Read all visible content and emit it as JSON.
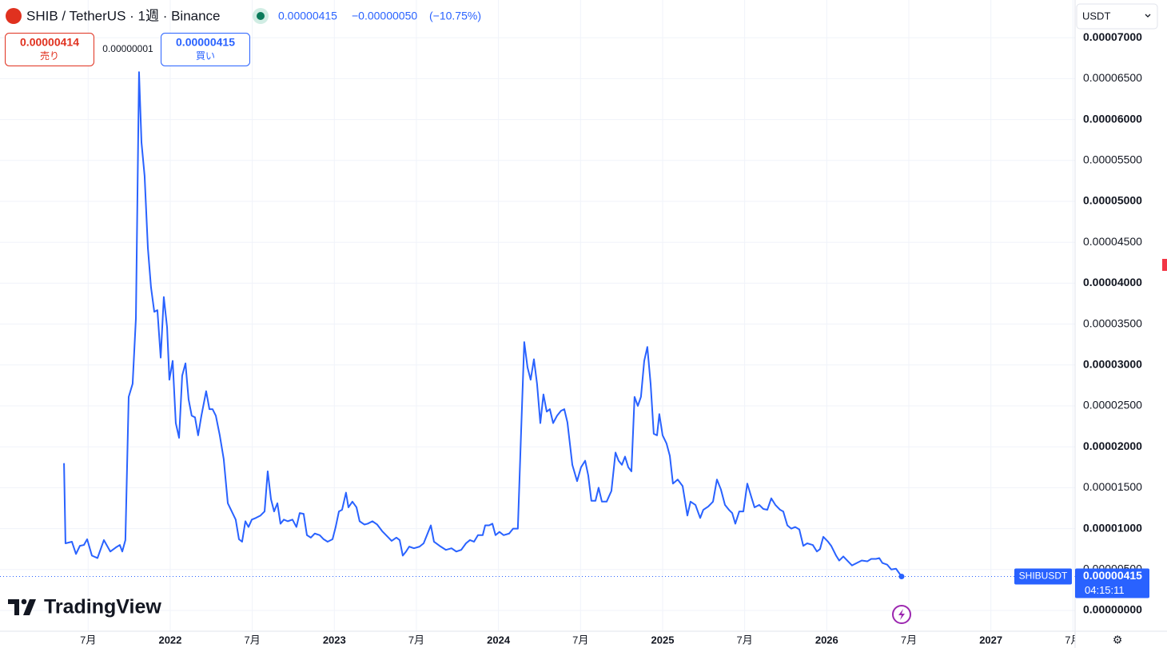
{
  "header": {
    "symbol": "SHIB / TetherUS · 1週 · Binance",
    "price": "0.00000415",
    "change": "−0.00000050",
    "change_pct": "(−10.75%)",
    "sell_price": "0.00000414",
    "sell_label": "売り",
    "spread": "0.00000001",
    "buy_price": "0.00000415",
    "buy_label": "買い",
    "currency": "USDT",
    "countdown": "04:15:11",
    "logo": "TradingView"
  },
  "chart_data": {
    "type": "line",
    "x": [
      2021.353,
      2021.362,
      2021.401,
      2021.426,
      2021.45,
      2021.474,
      2021.494,
      2021.523,
      2021.557,
      2021.596,
      2021.635,
      2021.669,
      2021.693,
      2021.708,
      2021.727,
      2021.747,
      2021.771,
      2021.791,
      2021.81,
      2021.825,
      2021.844,
      2021.864,
      2021.883,
      2021.903,
      2021.922,
      2021.942,
      2021.961,
      2021.981,
      2021.995,
      2022.015,
      2022.034,
      2022.054,
      2022.073,
      2022.093,
      2022.112,
      2022.131,
      2022.151,
      2022.17,
      2022.19,
      2022.219,
      2022.239,
      2022.258,
      2022.278,
      2022.302,
      2022.326,
      2022.351,
      2022.375,
      2022.399,
      2022.419,
      2022.438,
      2022.458,
      2022.477,
      2022.497,
      2022.521,
      2022.55,
      2022.575,
      2022.594,
      2022.614,
      2022.633,
      2022.653,
      2022.672,
      2022.692,
      2022.716,
      2022.745,
      2022.769,
      2022.789,
      2022.813,
      2022.833,
      2022.857,
      2022.881,
      2022.911,
      2022.935,
      2022.959,
      2022.989,
      2023.008,
      2023.028,
      2023.047,
      2023.071,
      2023.086,
      2023.11,
      2023.135,
      2023.154,
      2023.183,
      2023.203,
      2023.232,
      2023.261,
      2023.291,
      2023.325,
      2023.349,
      2023.378,
      2023.398,
      2023.417,
      2023.437,
      2023.456,
      2023.485,
      2023.519,
      2023.544,
      2023.568,
      2023.588,
      2023.607,
      2023.641,
      2023.68,
      2023.714,
      2023.743,
      2023.773,
      2023.802,
      2023.826,
      2023.851,
      2023.875,
      2023.904,
      2023.919,
      2023.943,
      2023.963,
      2023.982,
      2024.006,
      2024.031,
      2024.065,
      2024.089,
      2024.118,
      2024.138,
      2024.157,
      2024.177,
      2024.196,
      2024.216,
      2024.235,
      2024.255,
      2024.274,
      2024.294,
      2024.313,
      2024.333,
      2024.357,
      2024.381,
      2024.401,
      2024.42,
      2024.45,
      2024.479,
      2024.503,
      2024.528,
      2024.547,
      2024.566,
      2024.591,
      2024.61,
      2024.63,
      2024.659,
      2024.688,
      2024.713,
      2024.732,
      2024.752,
      2024.771,
      2024.791,
      2024.81,
      2024.829,
      2024.849,
      2024.868,
      2024.888,
      2024.907,
      2024.927,
      2024.946,
      2024.966,
      2024.98,
      2025.0,
      2025.024,
      2025.044,
      2025.063,
      2025.092,
      2025.122,
      2025.151,
      2025.17,
      2025.2,
      2025.229,
      2025.248,
      2025.278,
      2025.307,
      2025.331,
      2025.355,
      2025.38,
      2025.404,
      2025.424,
      2025.443,
      2025.467,
      2025.492,
      2025.516,
      2025.54,
      2025.56,
      2025.589,
      2025.614,
      2025.638,
      2025.662,
      2025.687,
      2025.716,
      2025.735,
      2025.76,
      2025.784,
      2025.808,
      2025.833,
      2025.857,
      2025.881,
      2025.915,
      2025.94,
      2025.959,
      2025.979,
      2026.008,
      2026.027,
      2026.057,
      2026.076,
      2026.101,
      2026.125,
      2026.154,
      2026.183,
      2026.213,
      2026.247,
      2026.271,
      2026.3,
      2026.32,
      2026.339,
      2026.368,
      2026.393,
      2026.422,
      2026.456
    ],
    "series": [
      {
        "name": "SHIBUSDT",
        "color": "#2962ff",
        "values": [
          1.8e-05,
          8.2e-06,
          8.4e-06,
          6.9e-06,
          7.9e-06,
          8e-06,
          8.7e-06,
          6.7e-06,
          6.4e-06,
          8.6e-06,
          7.2e-06,
          7.7e-06,
          8e-06,
          7.2e-06,
          8.6e-06,
          2.61e-05,
          2.77e-05,
          3.57e-05,
          6.58e-05,
          5.72e-05,
          5.31e-05,
          4.43e-05,
          3.95e-05,
          3.65e-05,
          3.67e-05,
          3.09e-05,
          3.83e-05,
          3.46e-05,
          2.82e-05,
          3.05e-05,
          2.29e-05,
          2.11e-05,
          2.87e-05,
          3.02e-05,
          2.58e-05,
          2.38e-05,
          2.36e-05,
          2.14e-05,
          2.38e-05,
          2.68e-05,
          2.46e-05,
          2.46e-05,
          2.38e-05,
          2.14e-05,
          1.85e-05,
          1.31e-05,
          1.21e-05,
          1.11e-05,
          8.7e-06,
          8.4e-06,
          1.09e-05,
          1.02e-05,
          1.11e-05,
          1.13e-05,
          1.16e-05,
          1.21e-05,
          1.7e-05,
          1.36e-05,
          1.21e-05,
          1.31e-05,
          1.06e-05,
          1.11e-05,
          1.09e-05,
          1.11e-05,
          1.02e-05,
          1.19e-05,
          1.18e-05,
          9.2e-06,
          8.9e-06,
          9.4e-06,
          9.2e-06,
          8.7e-06,
          8.4e-06,
          8.7e-06,
          1.02e-05,
          1.21e-05,
          1.23e-05,
          1.44e-05,
          1.26e-05,
          1.33e-05,
          1.26e-05,
          1.09e-05,
          1.05e-05,
          1.06e-05,
          1.09e-05,
          1.05e-05,
          9.7e-06,
          9e-06,
          8.5e-06,
          8.9e-06,
          8.6e-06,
          6.7e-06,
          7.2e-06,
          7.8e-06,
          7.6e-06,
          7.8e-06,
          8.2e-06,
          9.4e-06,
          1.04e-05,
          8.4e-06,
          7.9e-06,
          7.4e-06,
          7.6e-06,
          7.2e-06,
          7.4e-06,
          8.2e-06,
          8.6e-06,
          8.4e-06,
          9.2e-06,
          9.2e-06,
          1.04e-05,
          1.04e-05,
          1.06e-05,
          9.2e-06,
          9.6e-06,
          9.2e-06,
          9.4e-06,
          1e-05,
          1e-05,
          2.19e-05,
          3.28e-05,
          2.97e-05,
          2.82e-05,
          3.07e-05,
          2.77e-05,
          2.29e-05,
          2.64e-05,
          2.43e-05,
          2.46e-05,
          2.29e-05,
          2.38e-05,
          2.44e-05,
          2.46e-05,
          2.3e-05,
          1.78e-05,
          1.58e-05,
          1.75e-05,
          1.83e-05,
          1.65e-05,
          1.34e-05,
          1.34e-05,
          1.5e-05,
          1.33e-05,
          1.33e-05,
          1.46e-05,
          1.93e-05,
          1.83e-05,
          1.78e-05,
          1.88e-05,
          1.75e-05,
          1.7e-05,
          2.61e-05,
          2.5e-05,
          2.61e-05,
          3.05e-05,
          3.22e-05,
          2.77e-05,
          2.16e-05,
          2.14e-05,
          2.4e-05,
          2.14e-05,
          2.04e-05,
          1.89e-05,
          1.55e-05,
          1.6e-05,
          1.52e-05,
          1.16e-05,
          1.33e-05,
          1.29e-05,
          1.13e-05,
          1.23e-05,
          1.27e-05,
          1.33e-05,
          1.6e-05,
          1.48e-05,
          1.29e-05,
          1.23e-05,
          1.19e-05,
          1.06e-05,
          1.21e-05,
          1.21e-05,
          1.55e-05,
          1.39e-05,
          1.26e-05,
          1.29e-05,
          1.24e-05,
          1.23e-05,
          1.37e-05,
          1.29e-05,
          1.23e-05,
          1.21e-05,
          1.04e-05,
          1e-05,
          1.02e-05,
          9.9e-06,
          7.9e-06,
          8.2e-06,
          8e-06,
          7.2e-06,
          7.5e-06,
          9e-06,
          8.4e-06,
          7.9e-06,
          6.7e-06,
          6.1e-06,
          6.6e-06,
          6.1e-06,
          5.5e-06,
          5.8e-06,
          6.1e-06,
          6e-06,
          6.3e-06,
          6.3e-06,
          6.4e-06,
          5.8e-06,
          5.6e-06,
          5e-06,
          5.1e-06,
          4.15e-06
        ]
      }
    ],
    "xlim": [
      2020.963,
      2027.513
    ],
    "xticks": [
      {
        "value": 2021.5,
        "label": "7月"
      },
      2022,
      {
        "value": 2022.5,
        "label": "7月"
      },
      2023,
      {
        "value": 2023.5,
        "label": "7月"
      },
      2024,
      {
        "value": 2024.5,
        "label": "7月"
      },
      2025,
      {
        "value": 2025.5,
        "label": "7月"
      },
      2026,
      {
        "value": 2026.5,
        "label": "7月"
      },
      2027,
      {
        "value": 2027.5,
        "label": "7月"
      }
    ],
    "ylim": [
      -2.54e-06,
      7.461e-05
    ],
    "yticks": [
      {
        "value": 0,
        "label": "0.00000000"
      },
      {
        "value": 5e-06,
        "label": "0.00000500"
      },
      {
        "value": 1e-05,
        "label": "0.00001000"
      },
      {
        "value": 1.5e-05,
        "label": "0.00001500"
      },
      {
        "value": 2e-05,
        "label": "0.00002000"
      },
      {
        "value": 2.5e-05,
        "label": "0.00002500"
      },
      {
        "value": 3e-05,
        "label": "0.00003000"
      },
      {
        "value": 3.5e-05,
        "label": "0.00003500"
      },
      {
        "value": 4e-05,
        "label": "0.00004000"
      },
      {
        "value": 4.5e-05,
        "label": "0.00004500"
      },
      {
        "value": 5e-05,
        "label": "0.00005000"
      },
      {
        "value": 5.5e-05,
        "label": "0.00005500"
      },
      {
        "value": 6e-05,
        "label": "0.00006000"
      },
      {
        "value": 6.5e-05,
        "label": "0.00006500"
      },
      {
        "value": 7e-05,
        "label": "0.00007000"
      }
    ],
    "grid": true
  }
}
